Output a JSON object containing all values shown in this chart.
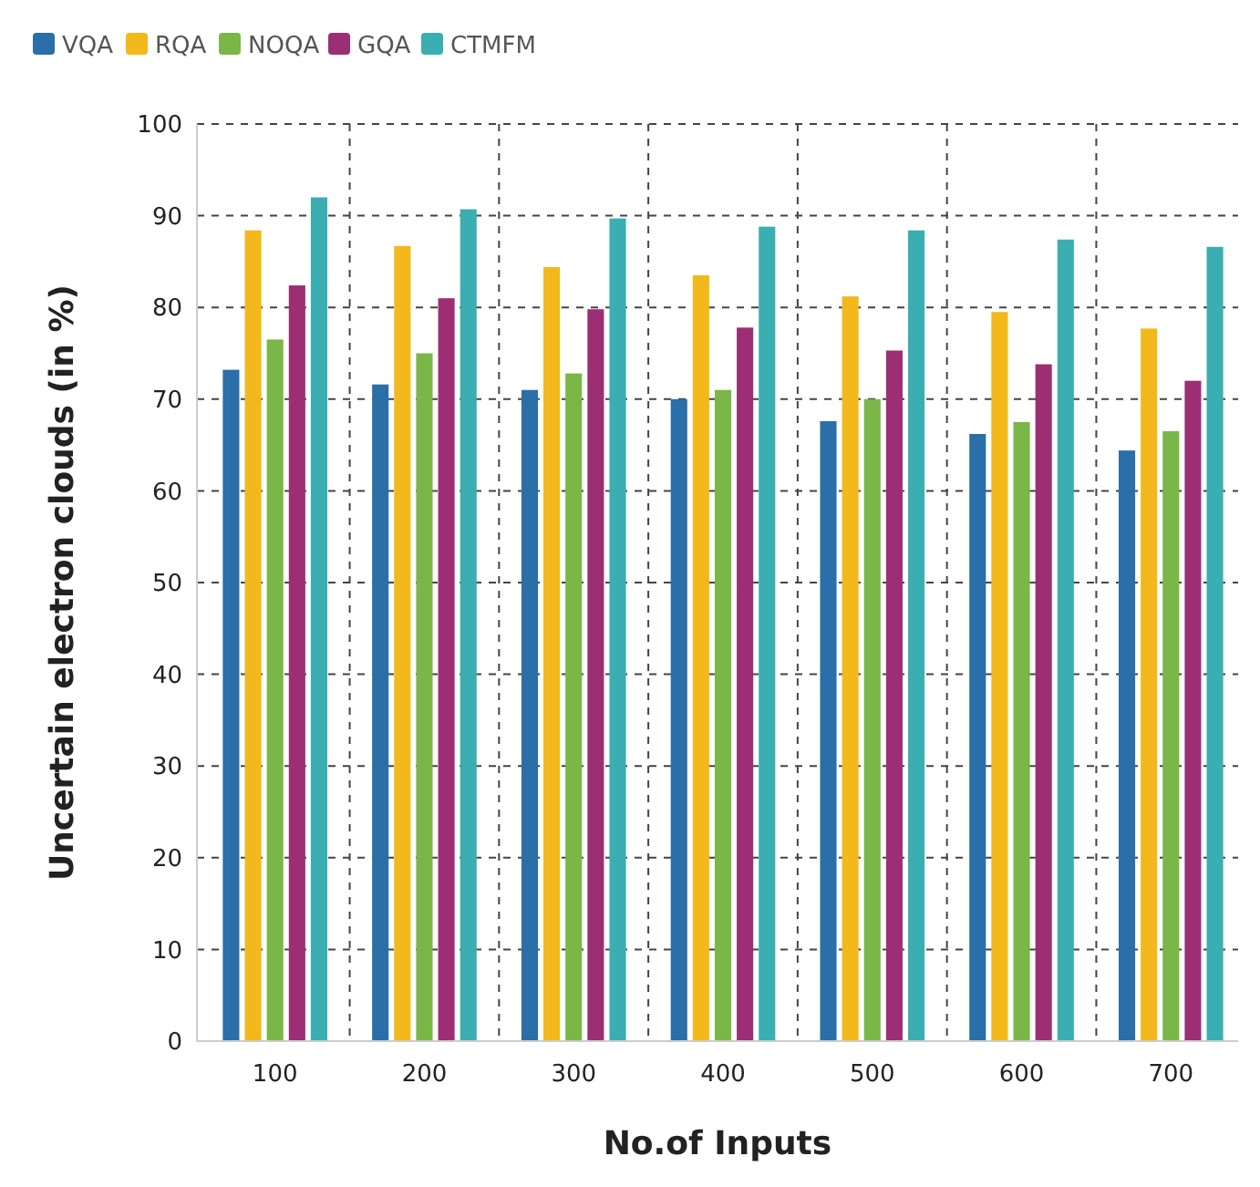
{
  "chart_data": {
    "type": "bar",
    "xlabel": "No.of Inputs",
    "ylabel": "Uncertain electron clouds (in %)",
    "categories": [
      "100",
      "200",
      "300",
      "400",
      "500",
      "600",
      "700"
    ],
    "series": [
      {
        "name": "VQA",
        "color": "#2a6fa8",
        "values": [
          73.2,
          71.6,
          71,
          70,
          67.6,
          66.2,
          64.4
        ]
      },
      {
        "name": "RQA",
        "color": "#f2b81c",
        "values": [
          88.4,
          86.7,
          84.4,
          83.5,
          81.2,
          79.5,
          77.7
        ]
      },
      {
        "name": "NOQA",
        "color": "#7ab648",
        "values": [
          76.5,
          75,
          72.8,
          71,
          70,
          67.5,
          66.5
        ]
      },
      {
        "name": "GQA",
        "color": "#9c2f74",
        "values": [
          82.4,
          81,
          79.8,
          77.8,
          75.3,
          73.8,
          72
        ]
      },
      {
        "name": "CTMFM",
        "color": "#3aaeb0",
        "values": [
          92,
          90.7,
          89.7,
          88.8,
          88.4,
          87.4,
          86.6
        ]
      }
    ],
    "ylim": [
      0,
      100
    ],
    "yticks": [
      0,
      10,
      20,
      30,
      40,
      50,
      60,
      70,
      80,
      90,
      100
    ],
    "grid": true,
    "legend": "top left"
  }
}
